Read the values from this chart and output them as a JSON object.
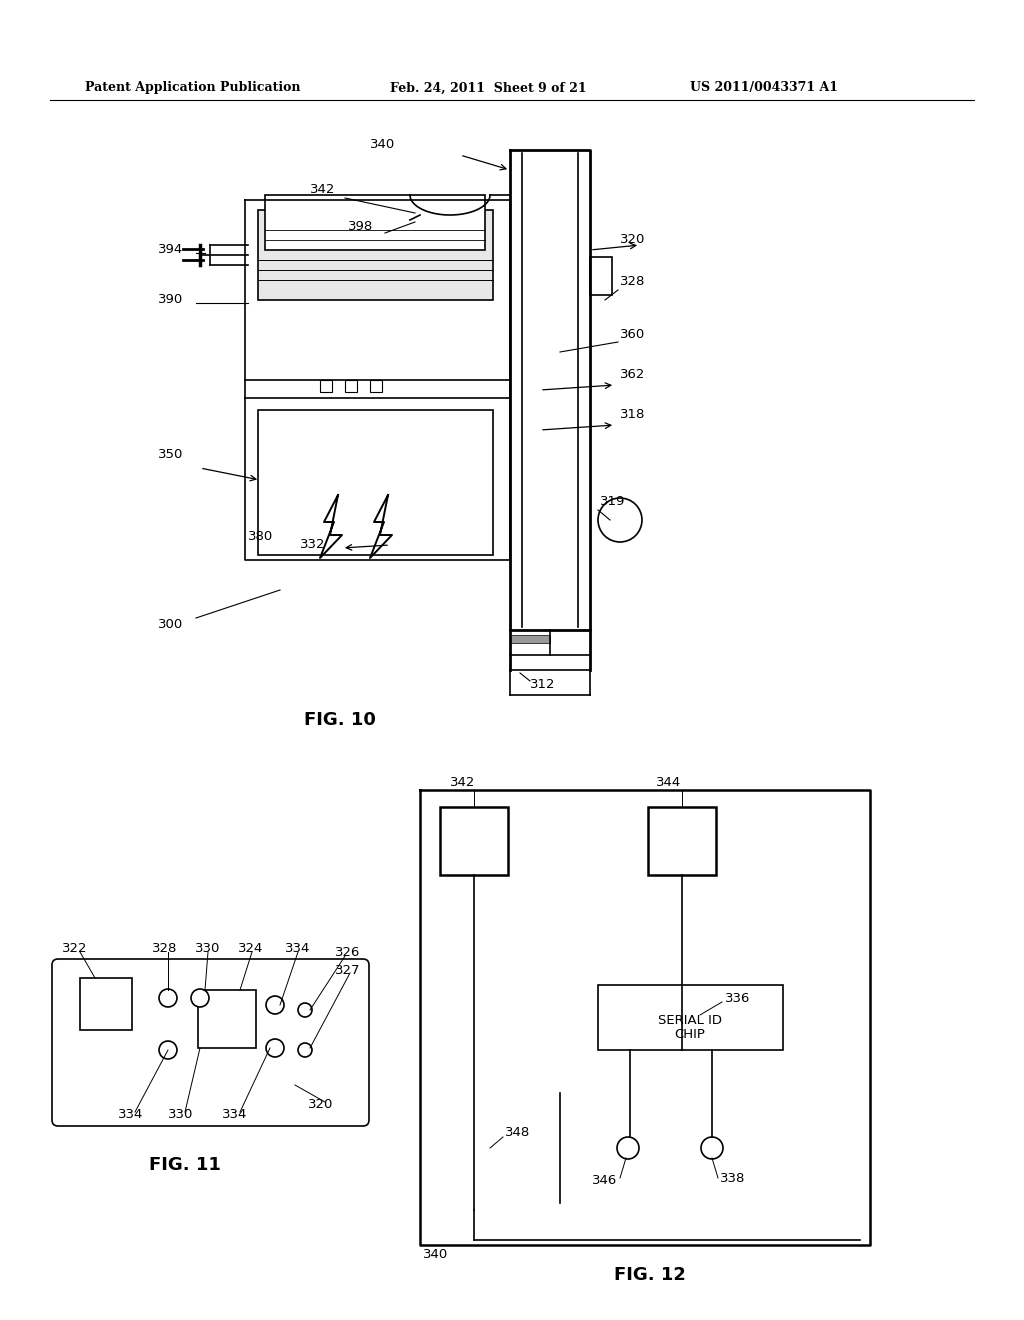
{
  "bg_color": "#ffffff",
  "header_left": "Patent Application Publication",
  "header_mid": "Feb. 24, 2011  Sheet 9 of 21",
  "header_right": "US 2011/0043371 A1",
  "fig10_label": "FIG. 10",
  "fig11_label": "FIG. 11",
  "fig12_label": "FIG. 12"
}
